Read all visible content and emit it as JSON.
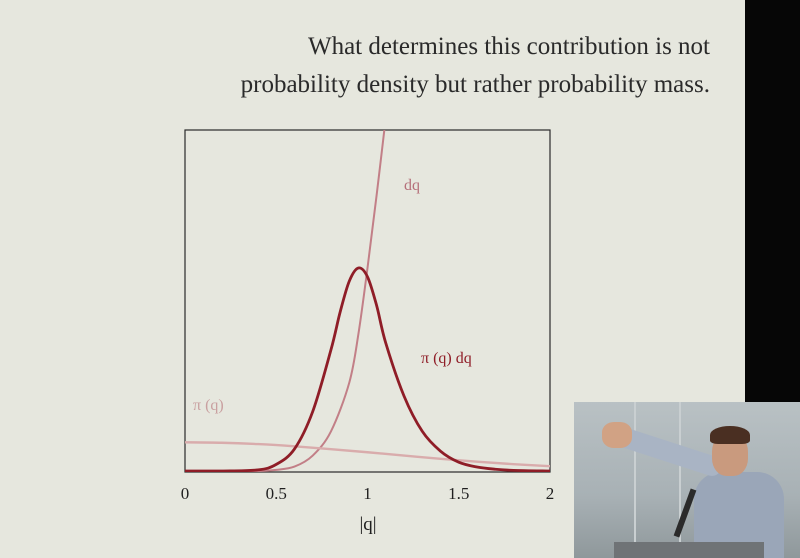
{
  "slide": {
    "title_line1": "What determines this contribution is not",
    "title_line2": "probability density but rather probability mass.",
    "background": "#e6e7de"
  },
  "chart_data": {
    "type": "line",
    "xlabel": "|q|",
    "ylabel": "",
    "xlim": [
      0,
      2
    ],
    "x_ticks": [
      "0",
      "0.5",
      "1",
      "1.5",
      "2"
    ],
    "grid": false,
    "series": [
      {
        "name": "dq",
        "color": "#c27f87",
        "x": [
          0,
          0.2,
          0.4,
          0.5,
          0.6,
          0.7,
          0.8,
          0.9,
          0.95,
          1.0,
          1.05,
          1.1
        ],
        "y": [
          0.0,
          0.0,
          0.0,
          0.005,
          0.02,
          0.07,
          0.18,
          0.4,
          0.62,
          0.92,
          1.25,
          1.6
        ]
      },
      {
        "name": "π (q)",
        "color": "#d9acac",
        "x": [
          0,
          0.2,
          0.4,
          0.6,
          0.8,
          1.0,
          1.2,
          1.4,
          1.6,
          1.8,
          2.0
        ],
        "y": [
          0.13,
          0.128,
          0.122,
          0.112,
          0.099,
          0.085,
          0.07,
          0.055,
          0.042,
          0.031,
          0.022
        ]
      },
      {
        "name": "π (q) dq",
        "color": "#8f1d27",
        "x": [
          0,
          0.2,
          0.4,
          0.5,
          0.6,
          0.7,
          0.8,
          0.85,
          0.9,
          0.95,
          1.0,
          1.05,
          1.1,
          1.2,
          1.3,
          1.4,
          1.5,
          1.6,
          1.7,
          1.8,
          2.0
        ],
        "y": [
          0.0,
          0.0,
          0.005,
          0.03,
          0.1,
          0.27,
          0.55,
          0.72,
          0.86,
          0.92,
          0.88,
          0.75,
          0.58,
          0.34,
          0.18,
          0.09,
          0.04,
          0.018,
          0.008,
          0.003,
          0.0
        ]
      }
    ]
  },
  "video": {
    "label": "speaker"
  }
}
